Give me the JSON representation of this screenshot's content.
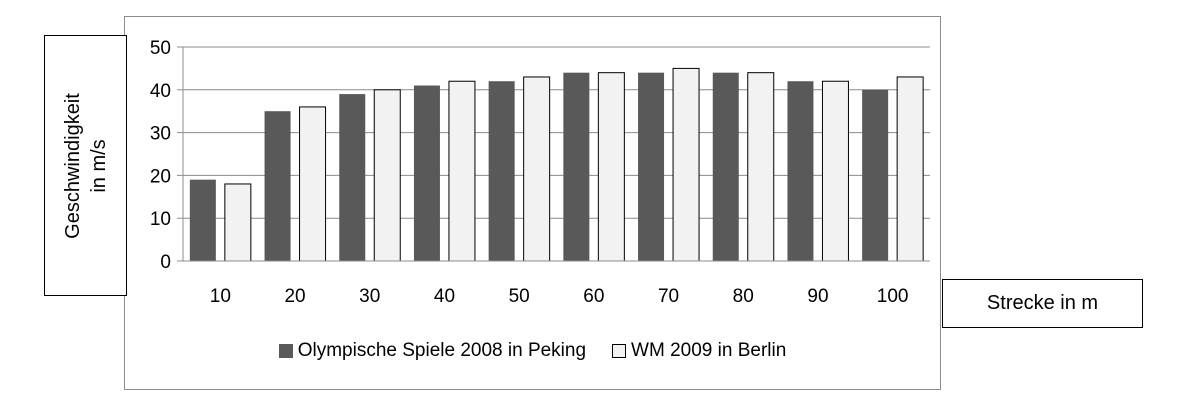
{
  "chart_data": {
    "type": "bar",
    "title": "",
    "xlabel": "Strecke in m",
    "ylabel": "Geschwindigkeit\nin m/s",
    "categories": [
      "10",
      "20",
      "30",
      "40",
      "50",
      "60",
      "70",
      "80",
      "90",
      "100"
    ],
    "yticks": [
      "0",
      "10",
      "20",
      "30",
      "40",
      "50"
    ],
    "ylim": [
      0,
      50
    ],
    "grid": true,
    "legend_position": "bottom",
    "series": [
      {
        "name": "Olympische Spiele 2008 in Peking",
        "color": "#595959",
        "values": [
          19,
          35,
          39,
          41,
          42,
          44,
          44,
          44,
          42,
          40
        ]
      },
      {
        "name": "WM 2009 in Berlin",
        "color": "#f2f2f2",
        "values": [
          18,
          36,
          40,
          42,
          43,
          44,
          45,
          44,
          42,
          43
        ]
      }
    ]
  }
}
